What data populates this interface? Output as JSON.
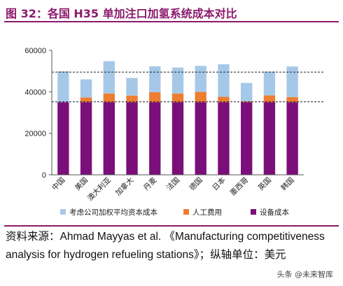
{
  "figure": {
    "title": "图 32：各国 H35 单加注口加氢系统成本对比"
  },
  "chart_data": {
    "type": "bar",
    "stacked": true,
    "categories": [
      "中国",
      "美国",
      "澳大利亚",
      "加拿大",
      "丹麦",
      "法国",
      "德国",
      "日本",
      "墨西哥",
      "英国",
      "韩国"
    ],
    "series": [
      {
        "name": "设备成本",
        "color": "#7b0f7a",
        "values": [
          35000,
          35000,
          35000,
          35000,
          35000,
          35000,
          35000,
          35000,
          35000,
          35000,
          35000
        ]
      },
      {
        "name": "人工费用",
        "color": "#ed7d31",
        "values": [
          0,
          2300,
          4200,
          3200,
          4800,
          4200,
          5000,
          2600,
          500,
          3300,
          2500
        ]
      },
      {
        "name": "考虑公司加权平均资本成本",
        "color": "#a6c8e8",
        "values": [
          14900,
          8700,
          15600,
          8500,
          12500,
          12500,
          12500,
          15700,
          8800,
          11500,
          14700
        ]
      }
    ],
    "ylim": [
      0,
      60000
    ],
    "yticks": [
      "0",
      "20000",
      "40000",
      "60000"
    ],
    "reference_lines": [
      49500,
      35200
    ],
    "legend_position": "bottom",
    "grid": false
  },
  "footer": {
    "source": "资料来源：Ahmad Mayyas et al. 《Manufacturing competitiveness analysis for hydrogen refueling stations》；纵轴单位：美元"
  },
  "watermark": "头条 @未来智库"
}
